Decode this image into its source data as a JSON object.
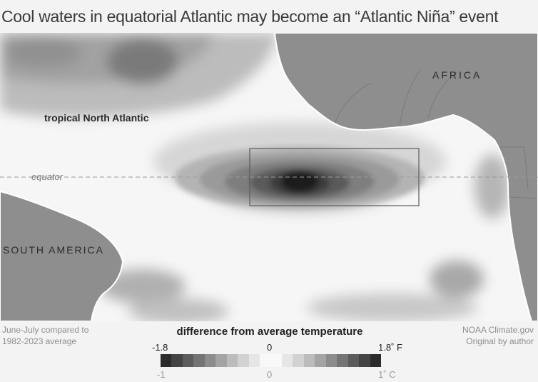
{
  "title": "Cool waters in equatorial Atlantic may become an “Atlantic Niña” event",
  "map": {
    "labels": {
      "tropical_north_atlantic": "tropical North Atlantic",
      "equator": "equator",
      "africa": "AFRICA",
      "south_america": "SOUTH AMERICA"
    },
    "colors": {
      "land": "#8e8e8e",
      "coast": "#ffffff",
      "ocean_neutral": "#f6f6f6",
      "cold_core": "#1c1c1c"
    }
  },
  "footnote_left": [
    "June-July compared to",
    "1982-2023 average"
  ],
  "footnote_right": [
    "NOAA Climate.gov",
    "Original by author"
  ],
  "legend": {
    "title": "difference from average temperature",
    "fahrenheit": {
      "min": "-1.8",
      "mid": "0",
      "max": "1.8˚ F"
    },
    "celsius": {
      "min": "-1",
      "mid": "0",
      "max": "1˚ C"
    },
    "swatches": [
      "#2b2b2b",
      "#444444",
      "#5c5c5c",
      "#747474",
      "#8c8c8c",
      "#a4a4a4",
      "#bcbcbc",
      "#d2d2d2",
      "#e6e6e6",
      "#f8f8f8",
      "#f8f8f8",
      "#e6e6e6",
      "#d2d2d2",
      "#bcbcbc",
      "#a4a4a4",
      "#8c8c8c",
      "#747474",
      "#5c5c5c",
      "#444444",
      "#2b2b2b"
    ]
  }
}
